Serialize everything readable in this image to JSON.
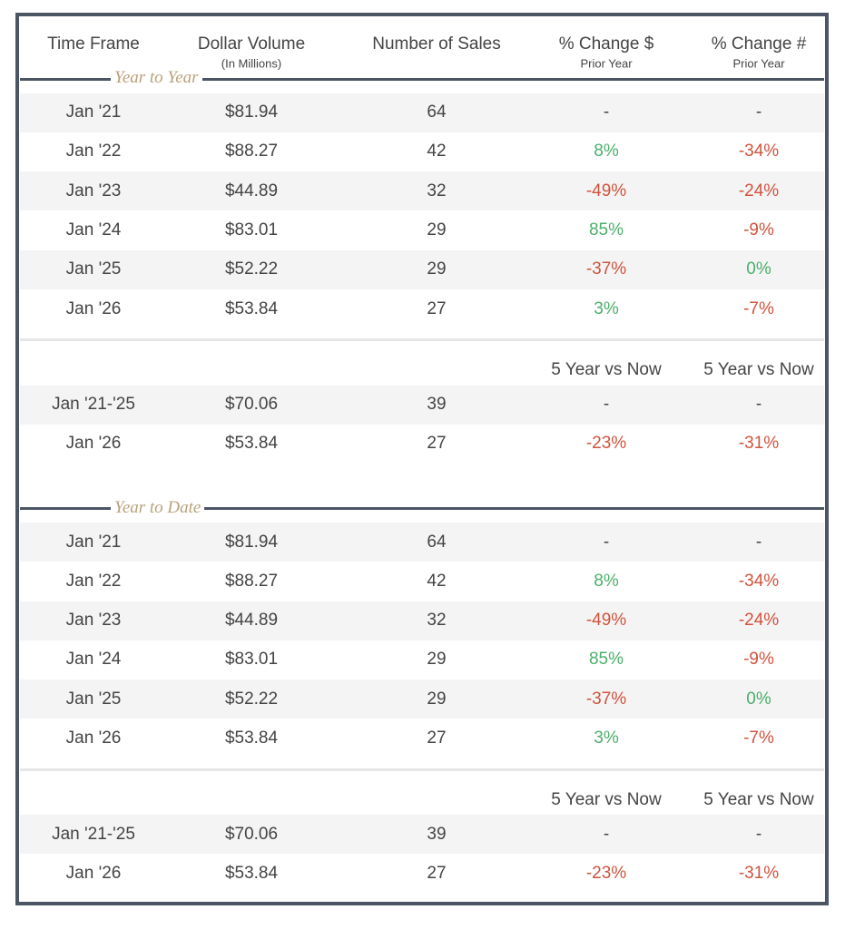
{
  "header": {
    "columns": [
      {
        "title": "Time Frame"
      },
      {
        "title": "Dollar Volume",
        "subtitle": "(In Millions)"
      },
      {
        "title": "Number of Sales"
      },
      {
        "title": "% Change $",
        "subtitle": "Prior Year"
      },
      {
        "title": "% Change #",
        "subtitle": "Prior Year"
      }
    ]
  },
  "sections": [
    {
      "label": "Year to Year",
      "rows": [
        [
          "Jan '21",
          "$81.94",
          "64",
          "-",
          "-"
        ],
        [
          "Jan '22",
          "$88.27",
          "42",
          "8%",
          "-34%"
        ],
        [
          "Jan '23",
          "$44.89",
          "32",
          "-49%",
          "-24%"
        ],
        [
          "Jan '24",
          "$83.01",
          "29",
          "85%",
          "-9%"
        ],
        [
          "Jan '25",
          "$52.22",
          "29",
          "-37%",
          "0%"
        ],
        [
          "Jan '26",
          "$53.84",
          "27",
          "3%",
          "-7%"
        ]
      ],
      "comparison": {
        "headers": [
          "5 Year vs Now",
          "5 Year vs Now"
        ],
        "rows": [
          [
            "Jan '21-'25",
            "$70.06",
            "39",
            "-",
            "-"
          ],
          [
            "Jan '26",
            "$53.84",
            "27",
            "-23%",
            "-31%"
          ]
        ]
      }
    },
    {
      "label": "Year to Date",
      "rows": [
        [
          "Jan '21",
          "$81.94",
          "64",
          "-",
          "-"
        ],
        [
          "Jan '22",
          "$88.27",
          "42",
          "8%",
          "-34%"
        ],
        [
          "Jan '23",
          "$44.89",
          "32",
          "-49%",
          "-24%"
        ],
        [
          "Jan '24",
          "$83.01",
          "29",
          "85%",
          "-9%"
        ],
        [
          "Jan '25",
          "$52.22",
          "29",
          "-37%",
          "0%"
        ],
        [
          "Jan '26",
          "$53.84",
          "27",
          "3%",
          "-7%"
        ]
      ],
      "comparison": {
        "headers": [
          "5 Year vs Now",
          "5 Year vs Now"
        ],
        "rows": [
          [
            "Jan '21-'25",
            "$70.06",
            "39",
            "-",
            "-"
          ],
          [
            "Jan '26",
            "$53.84",
            "27",
            "-23%",
            "-31%"
          ]
        ]
      }
    }
  ]
}
